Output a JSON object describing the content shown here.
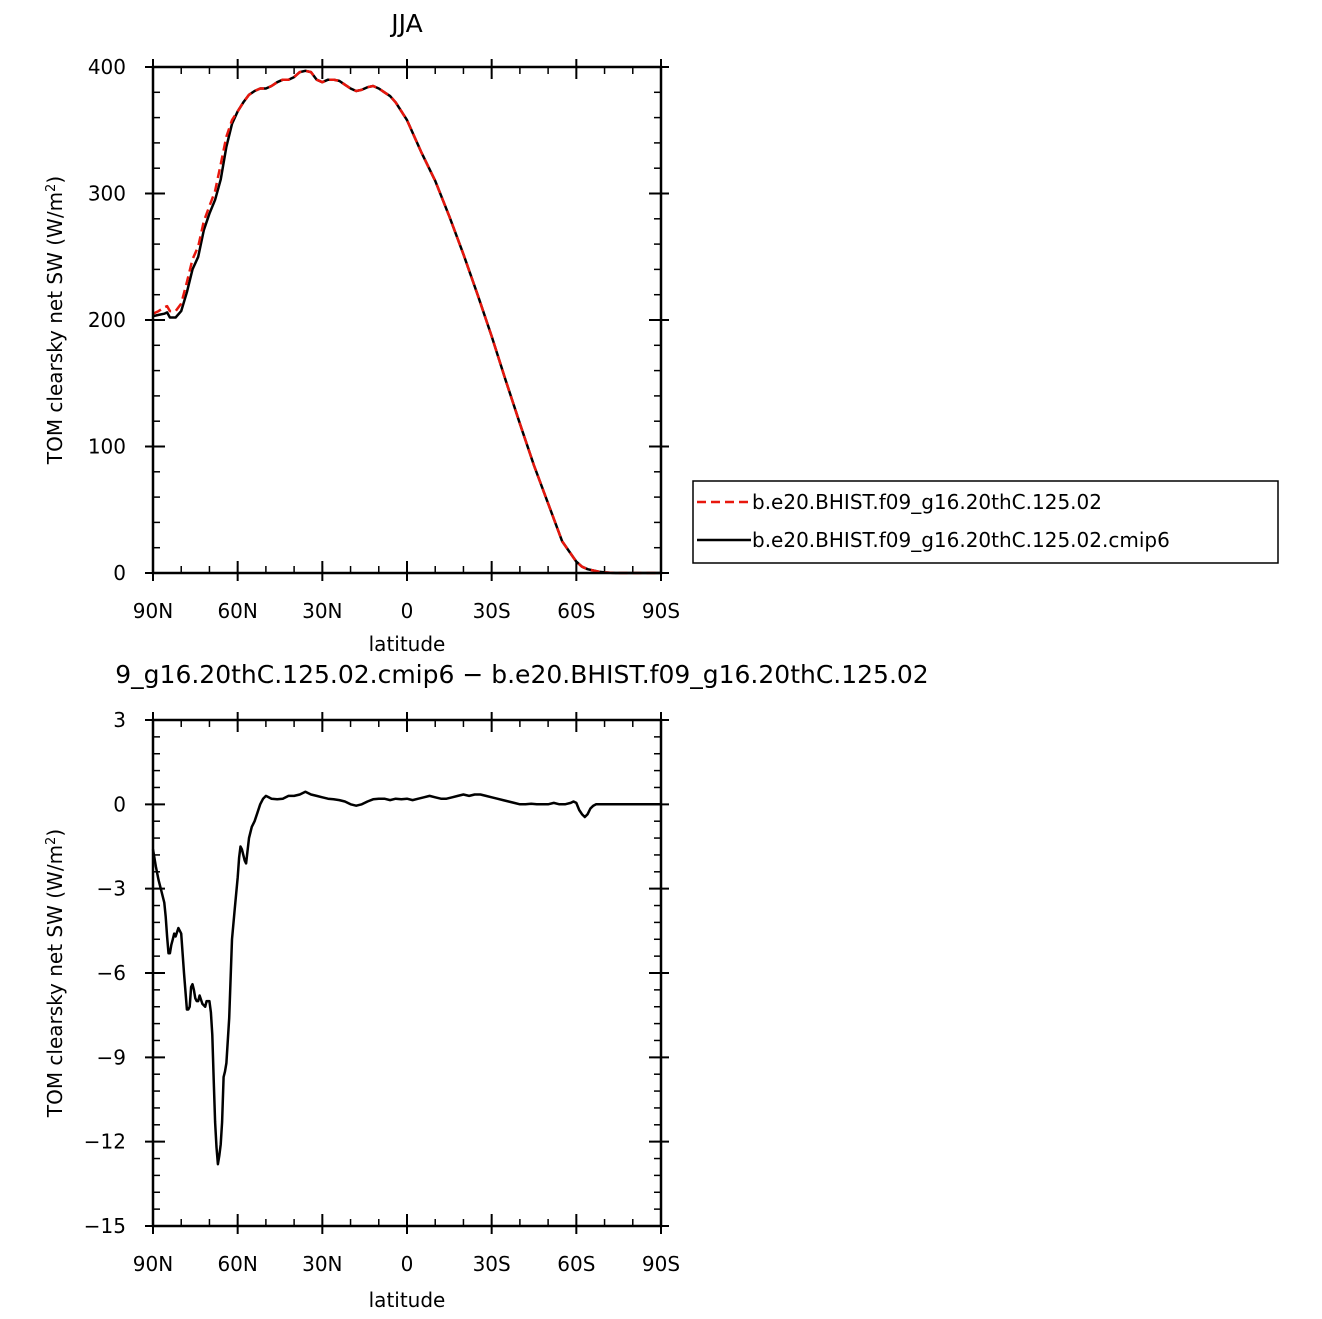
{
  "chart_data": [
    {
      "type": "line",
      "title": "JJA",
      "xlabel": "latitude",
      "ylabel": "TOM clearsky net SW (W/m",
      "ylabel_sup": "2",
      "ylabel_close": ")",
      "xlim": [
        90,
        -90
      ],
      "ylim": [
        0,
        400
      ],
      "x_ticks": [
        {
          "value": 90,
          "label": "90N"
        },
        {
          "value": 60,
          "label": "60N"
        },
        {
          "value": 30,
          "label": "30N"
        },
        {
          "value": 0,
          "label": "0"
        },
        {
          "value": -30,
          "label": "30S"
        },
        {
          "value": -60,
          "label": "60S"
        },
        {
          "value": -90,
          "label": "90S"
        }
      ],
      "y_ticks": [
        {
          "value": 0,
          "label": "0"
        },
        {
          "value": 100,
          "label": "100"
        },
        {
          "value": 200,
          "label": "200"
        },
        {
          "value": 300,
          "label": "300"
        },
        {
          "value": 400,
          "label": "400"
        }
      ],
      "legend_position": "right",
      "series": [
        {
          "name": "b.e20.BHIST.f09_g16.20thC.125.02",
          "color": "#e8170d",
          "dash": "dashed",
          "x": [
            90,
            88,
            86,
            85,
            84,
            82,
            80,
            78,
            76,
            74,
            72,
            70,
            68,
            66,
            64,
            62,
            60,
            58,
            56,
            54,
            52,
            50,
            48,
            46,
            44,
            42,
            40,
            38,
            36,
            34,
            32,
            30,
            28,
            26,
            24,
            22,
            20,
            18,
            16,
            14,
            12,
            10,
            8,
            6,
            4,
            2,
            0,
            -5,
            -10,
            -15,
            -20,
            -25,
            -30,
            -35,
            -40,
            -45,
            -50,
            -55,
            -60,
            -62,
            -64,
            -66,
            -68,
            -70,
            -72,
            -74,
            -76,
            -78,
            -80,
            -85,
            -90
          ],
          "y": [
            205,
            207,
            210,
            211,
            207,
            207,
            213,
            230,
            248,
            258,
            278,
            290,
            302,
            323,
            345,
            358,
            365,
            372,
            378,
            381,
            383,
            383,
            385,
            388,
            390,
            390,
            392,
            396,
            397,
            396,
            390,
            388,
            390,
            390,
            389,
            386,
            383,
            381,
            382,
            384,
            385,
            383,
            380,
            377,
            372,
            365,
            358,
            333,
            310,
            282,
            252,
            220,
            187,
            152,
            118,
            85,
            55,
            25,
            9,
            5,
            3,
            2,
            1,
            0.5,
            0.2,
            0,
            0,
            0,
            0,
            0,
            0
          ]
        },
        {
          "name": "b.e20.BHIST.f09_g16.20thC.125.02.cmip6",
          "color": "#000000",
          "dash": "solid",
          "x": [
            90,
            88,
            86,
            85,
            84,
            82,
            80,
            78,
            76,
            74,
            72,
            70,
            68,
            66,
            64,
            62,
            60,
            58,
            56,
            54,
            52,
            50,
            48,
            46,
            44,
            42,
            40,
            38,
            36,
            34,
            32,
            30,
            28,
            26,
            24,
            22,
            20,
            18,
            16,
            14,
            12,
            10,
            8,
            6,
            4,
            2,
            0,
            -5,
            -10,
            -15,
            -20,
            -25,
            -30,
            -35,
            -40,
            -45,
            -50,
            -55,
            -60,
            -62,
            -64,
            -66,
            -68,
            -70,
            -72,
            -74,
            -76,
            -78,
            -80,
            -85,
            -90
          ],
          "y": [
            203,
            204,
            205,
            206,
            202,
            202,
            207,
            222,
            240,
            250,
            271,
            284,
            295,
            311,
            337,
            355,
            365,
            372,
            378,
            381,
            383,
            383,
            385,
            388,
            390,
            390,
            392,
            396,
            397,
            396,
            390,
            388,
            390,
            390,
            389,
            386,
            383,
            381,
            382,
            384,
            385,
            383,
            380,
            377,
            372,
            365,
            358,
            333,
            310,
            282,
            252,
            220,
            187,
            152,
            118,
            85,
            55,
            25,
            9,
            5,
            3,
            2,
            1,
            0.5,
            0.2,
            0,
            0,
            0,
            0,
            0,
            0
          ]
        }
      ]
    },
    {
      "type": "line",
      "title": "9_g16.20thC.125.02.cmip6 − b.e20.BHIST.f09_g16.20thC.125.02",
      "xlabel": "latitude",
      "ylabel": "TOM clearsky net SW (W/m",
      "ylabel_sup": "2",
      "ylabel_close": ")",
      "xlim": [
        90,
        -90
      ],
      "ylim": [
        -15,
        3
      ],
      "x_ticks": [
        {
          "value": 90,
          "label": "90N"
        },
        {
          "value": 60,
          "label": "60N"
        },
        {
          "value": 30,
          "label": "30N"
        },
        {
          "value": 0,
          "label": "0"
        },
        {
          "value": -30,
          "label": "30S"
        },
        {
          "value": -60,
          "label": "60S"
        },
        {
          "value": -90,
          "label": "90S"
        }
      ],
      "y_ticks": [
        {
          "value": 3,
          "label": "3"
        },
        {
          "value": 0,
          "label": "0"
        },
        {
          "value": -3,
          "label": "−3"
        },
        {
          "value": -6,
          "label": "−6"
        },
        {
          "value": -9,
          "label": "−9"
        },
        {
          "value": -12,
          "label": "−12"
        },
        {
          "value": -15,
          "label": "−15"
        }
      ],
      "series": [
        {
          "color": "#000000",
          "dash": "solid",
          "x": [
            90,
            89,
            88,
            87,
            86,
            85.5,
            85,
            84.5,
            84,
            83.5,
            83,
            82.5,
            82,
            81,
            80,
            79.5,
            79,
            78,
            77.5,
            77,
            76.5,
            76,
            75.5,
            75,
            74.5,
            74,
            73.5,
            72.5,
            71.5,
            71,
            70.5,
            70,
            69.5,
            69,
            68.5,
            68,
            67.5,
            67,
            66.5,
            66,
            65.5,
            65,
            64.5,
            64,
            63,
            62,
            61,
            60,
            59.5,
            59,
            58.5,
            58,
            57.5,
            57,
            56,
            55,
            54,
            53,
            52,
            51,
            50,
            49,
            48,
            46,
            44,
            42,
            40,
            38,
            36,
            34,
            32,
            30,
            28,
            26,
            24,
            22,
            20,
            18,
            16,
            14,
            12,
            10,
            8,
            6,
            4,
            2,
            0,
            -2,
            -4,
            -6,
            -8,
            -10,
            -12,
            -14,
            -16,
            -18,
            -20,
            -22,
            -24,
            -26,
            -28,
            -30,
            -32,
            -34,
            -36,
            -38,
            -40,
            -42,
            -44,
            -46,
            -48,
            -50,
            -52,
            -54,
            -56,
            -58,
            -59,
            -60,
            -61,
            -62,
            -63,
            -64,
            -65,
            -66,
            -67,
            -68,
            -70,
            -75,
            -80,
            -85,
            -90
          ],
          "y": [
            -1.6,
            -2.2,
            -2.7,
            -3.1,
            -3.5,
            -4.0,
            -4.7,
            -5.3,
            -5.3,
            -5.0,
            -4.8,
            -4.6,
            -4.7,
            -4.4,
            -4.6,
            -5.3,
            -6.0,
            -7.3,
            -7.3,
            -7.2,
            -6.5,
            -6.4,
            -6.6,
            -6.9,
            -7.0,
            -7.0,
            -6.8,
            -7.1,
            -7.2,
            -7.0,
            -7.0,
            -7.0,
            -7.4,
            -8.2,
            -9.8,
            -11.3,
            -12.2,
            -12.8,
            -12.5,
            -12.1,
            -11.3,
            -9.7,
            -9.5,
            -9.2,
            -7.6,
            -4.8,
            -3.7,
            -2.6,
            -1.9,
            -1.5,
            -1.6,
            -1.8,
            -2.0,
            -2.1,
            -1.2,
            -0.8,
            -0.6,
            -0.3,
            0.0,
            0.2,
            0.3,
            0.25,
            0.2,
            0.18,
            0.2,
            0.3,
            0.3,
            0.35,
            0.45,
            0.35,
            0.3,
            0.25,
            0.2,
            0.18,
            0.15,
            0.1,
            0.0,
            -0.05,
            0.0,
            0.1,
            0.18,
            0.2,
            0.2,
            0.15,
            0.2,
            0.18,
            0.2,
            0.15,
            0.2,
            0.25,
            0.3,
            0.25,
            0.2,
            0.2,
            0.25,
            0.3,
            0.35,
            0.3,
            0.35,
            0.35,
            0.3,
            0.25,
            0.2,
            0.15,
            0.1,
            0.05,
            0.0,
            0.0,
            0.02,
            0.0,
            0.0,
            0.0,
            0.05,
            0.0,
            0.0,
            0.05,
            0.1,
            0.05,
            -0.2,
            -0.35,
            -0.45,
            -0.35,
            -0.15,
            -0.05,
            0.0,
            0.0,
            0.0,
            0.0,
            0.0,
            0.0,
            0.0
          ]
        }
      ]
    }
  ]
}
